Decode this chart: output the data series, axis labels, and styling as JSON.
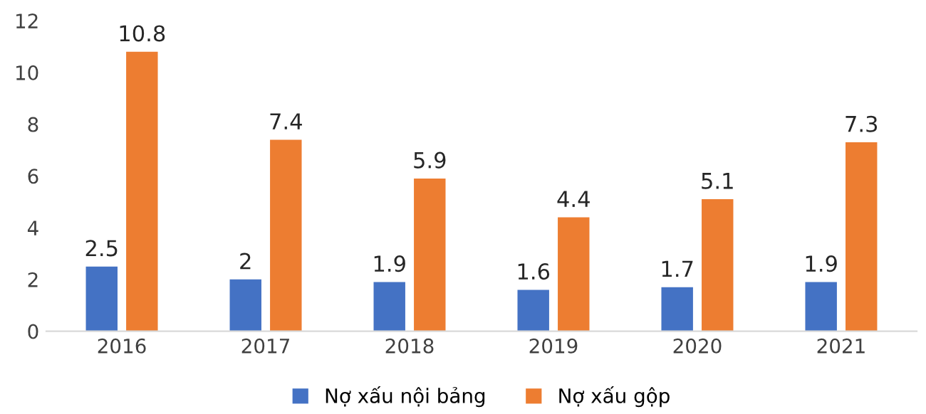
{
  "chart_data": {
    "type": "bar",
    "categories": [
      "2016",
      "2017",
      "2018",
      "2019",
      "2020",
      "2021"
    ],
    "series": [
      {
        "name": "Nợ xấu nội bảng",
        "color": "#4472c4",
        "values": [
          2.5,
          2,
          1.9,
          1.6,
          1.7,
          1.9
        ]
      },
      {
        "name": "Nợ xấu gộp",
        "color": "#ed7d31",
        "values": [
          10.8,
          7.4,
          5.9,
          4.4,
          5.1,
          7.3
        ]
      }
    ],
    "ylim": [
      0,
      12
    ],
    "yticks": [
      0,
      2,
      4,
      6,
      8,
      10,
      12
    ],
    "data_labels": true,
    "legend": "bottom",
    "grid": false
  }
}
